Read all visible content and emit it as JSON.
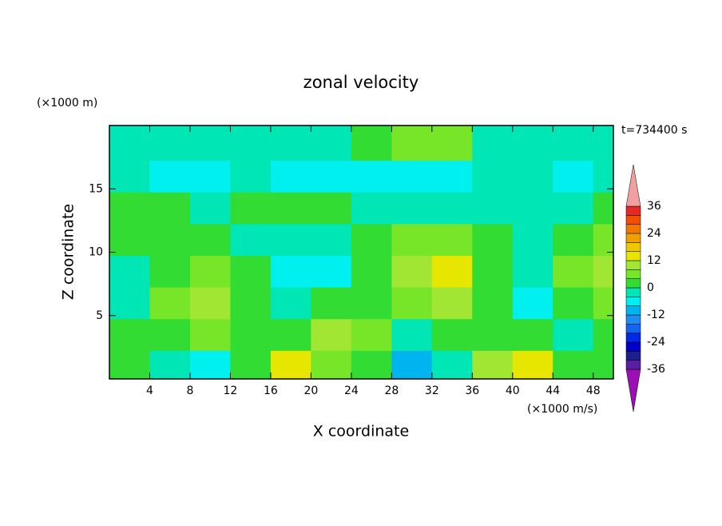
{
  "chart_data": {
    "type": "contour",
    "title": "zonal velocity",
    "y_unit": "(×1000 m)",
    "x_unit": "(×1000 m/s)",
    "time_label": "t=734400 s",
    "x_label": "X coordinate",
    "y_label": "Z coordinate",
    "x": [
      2,
      6,
      10,
      14,
      18,
      22,
      26,
      30,
      34,
      38,
      42,
      46,
      50
    ],
    "y": [
      1,
      3.5,
      6,
      8.5,
      11,
      13.5,
      16,
      18.5
    ],
    "z": [
      [
        2,
        -2,
        -6,
        2,
        14,
        6,
        2,
        -10,
        -2,
        10,
        12,
        2,
        2
      ],
      [
        2,
        2,
        6,
        2,
        2,
        10,
        6,
        -2,
        2,
        2,
        2,
        -2,
        2
      ],
      [
        -2,
        6,
        10,
        2,
        -2,
        2,
        2,
        6,
        10,
        2,
        -6,
        2,
        6
      ],
      [
        -2,
        2,
        6,
        2,
        -6,
        -6,
        2,
        10,
        14,
        2,
        -2,
        6,
        10
      ],
      [
        2,
        2,
        2,
        -2,
        -2,
        -2,
        2,
        6,
        6,
        2,
        -2,
        2,
        6
      ],
      [
        2,
        2,
        -2,
        2,
        2,
        2,
        -2,
        -2,
        -2,
        -2,
        -2,
        -2,
        2
      ],
      [
        -2,
        -6,
        -6,
        -2,
        -6,
        -6,
        -6,
        -6,
        -6,
        -2,
        -2,
        -6,
        -2
      ],
      [
        -2,
        -2,
        -2,
        -2,
        -2,
        -2,
        2,
        6,
        6,
        -2,
        -2,
        -2,
        -2
      ]
    ],
    "xlim": [
      0,
      50
    ],
    "ylim": [
      0,
      20
    ],
    "xticks": [
      4,
      8,
      12,
      16,
      20,
      24,
      28,
      32,
      36,
      40,
      44,
      48
    ],
    "yticks": [
      5,
      10,
      15
    ],
    "levels": [
      -36,
      -32,
      -28,
      -24,
      -20,
      -16,
      -12,
      -8,
      -4,
      0,
      4,
      8,
      12,
      16,
      20,
      24,
      28,
      32,
      36
    ],
    "colors": [
      "#9b10b4",
      "#5a1ea0",
      "#1e1e8c",
      "#0000c8",
      "#0028e6",
      "#1464f0",
      "#1e8cf0",
      "#00b4f0",
      "#00f0f0",
      "#00e6b4",
      "#32dc32",
      "#78e628",
      "#a0e632",
      "#e6e600",
      "#f0c800",
      "#f0a000",
      "#f07800",
      "#f05000",
      "#e62828",
      "#f0a0a0"
    ],
    "cbar_ticks": [
      -36,
      -24,
      -12,
      0,
      12,
      24,
      36
    ]
  }
}
